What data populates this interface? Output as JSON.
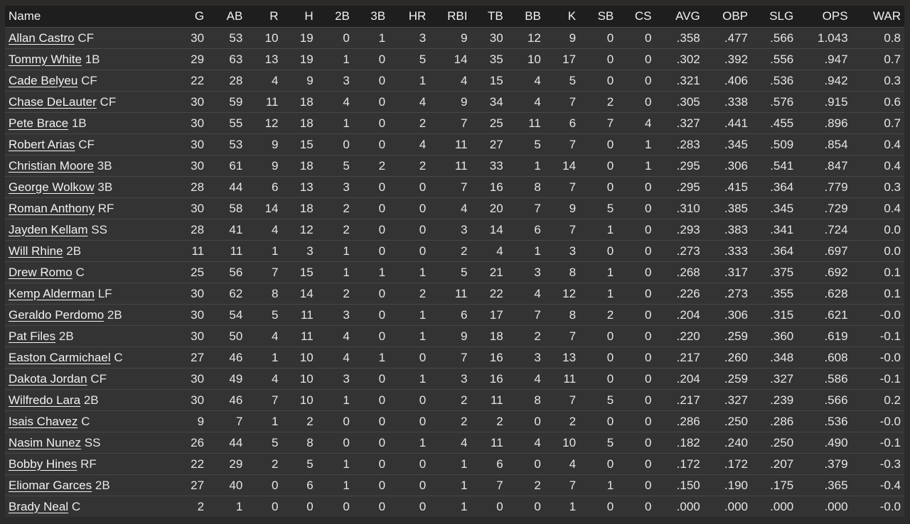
{
  "columns": [
    "Name",
    "G",
    "AB",
    "R",
    "H",
    "2B",
    "3B",
    "HR",
    "RBI",
    "TB",
    "BB",
    "K",
    "SB",
    "CS",
    "AVG",
    "OBP",
    "SLG",
    "OPS",
    "WAR"
  ],
  "rows": [
    {
      "name": "Allan Castro",
      "pos": "CF",
      "stats": [
        "30",
        "53",
        "10",
        "19",
        "0",
        "1",
        "3",
        "9",
        "30",
        "12",
        "9",
        "0",
        "0",
        ".358",
        ".477",
        ".566",
        "1.043",
        "0.8"
      ]
    },
    {
      "name": "Tommy White",
      "pos": "1B",
      "stats": [
        "29",
        "63",
        "13",
        "19",
        "1",
        "0",
        "5",
        "14",
        "35",
        "10",
        "17",
        "0",
        "0",
        ".302",
        ".392",
        ".556",
        ".947",
        "0.7"
      ]
    },
    {
      "name": "Cade Belyeu",
      "pos": "CF",
      "stats": [
        "22",
        "28",
        "4",
        "9",
        "3",
        "0",
        "1",
        "4",
        "15",
        "4",
        "5",
        "0",
        "0",
        ".321",
        ".406",
        ".536",
        ".942",
        "0.3"
      ]
    },
    {
      "name": "Chase DeLauter",
      "pos": "CF",
      "stats": [
        "30",
        "59",
        "11",
        "18",
        "4",
        "0",
        "4",
        "9",
        "34",
        "4",
        "7",
        "2",
        "0",
        ".305",
        ".338",
        ".576",
        ".915",
        "0.6"
      ]
    },
    {
      "name": "Pete Brace",
      "pos": "1B",
      "stats": [
        "30",
        "55",
        "12",
        "18",
        "1",
        "0",
        "2",
        "7",
        "25",
        "11",
        "6",
        "7",
        "4",
        ".327",
        ".441",
        ".455",
        ".896",
        "0.7"
      ]
    },
    {
      "name": "Robert Arias",
      "pos": "CF",
      "stats": [
        "30",
        "53",
        "9",
        "15",
        "0",
        "0",
        "4",
        "11",
        "27",
        "5",
        "7",
        "0",
        "1",
        ".283",
        ".345",
        ".509",
        ".854",
        "0.4"
      ]
    },
    {
      "name": "Christian Moore",
      "pos": "3B",
      "stats": [
        "30",
        "61",
        "9",
        "18",
        "5",
        "2",
        "2",
        "11",
        "33",
        "1",
        "14",
        "0",
        "1",
        ".295",
        ".306",
        ".541",
        ".847",
        "0.4"
      ]
    },
    {
      "name": "George Wolkow",
      "pos": "3B",
      "stats": [
        "28",
        "44",
        "6",
        "13",
        "3",
        "0",
        "0",
        "7",
        "16",
        "8",
        "7",
        "0",
        "0",
        ".295",
        ".415",
        ".364",
        ".779",
        "0.3"
      ]
    },
    {
      "name": "Roman Anthony",
      "pos": "RF",
      "stats": [
        "30",
        "58",
        "14",
        "18",
        "2",
        "0",
        "0",
        "4",
        "20",
        "7",
        "9",
        "5",
        "0",
        ".310",
        ".385",
        ".345",
        ".729",
        "0.4"
      ]
    },
    {
      "name": "Jayden Kellam",
      "pos": "SS",
      "stats": [
        "28",
        "41",
        "4",
        "12",
        "2",
        "0",
        "0",
        "3",
        "14",
        "6",
        "7",
        "1",
        "0",
        ".293",
        ".383",
        ".341",
        ".724",
        "0.0"
      ]
    },
    {
      "name": "Will Rhine",
      "pos": "2B",
      "stats": [
        "11",
        "11",
        "1",
        "3",
        "1",
        "0",
        "0",
        "2",
        "4",
        "1",
        "3",
        "0",
        "0",
        ".273",
        ".333",
        ".364",
        ".697",
        "0.0"
      ]
    },
    {
      "name": "Drew Romo",
      "pos": "C",
      "stats": [
        "25",
        "56",
        "7",
        "15",
        "1",
        "1",
        "1",
        "5",
        "21",
        "3",
        "8",
        "1",
        "0",
        ".268",
        ".317",
        ".375",
        ".692",
        "0.1"
      ]
    },
    {
      "name": "Kemp Alderman",
      "pos": "LF",
      "stats": [
        "30",
        "62",
        "8",
        "14",
        "2",
        "0",
        "2",
        "11",
        "22",
        "4",
        "12",
        "1",
        "0",
        ".226",
        ".273",
        ".355",
        ".628",
        "0.1"
      ]
    },
    {
      "name": "Geraldo Perdomo",
      "pos": "2B",
      "stats": [
        "30",
        "54",
        "5",
        "11",
        "3",
        "0",
        "1",
        "6",
        "17",
        "7",
        "8",
        "2",
        "0",
        ".204",
        ".306",
        ".315",
        ".621",
        "-0.0"
      ]
    },
    {
      "name": "Pat Files",
      "pos": "2B",
      "stats": [
        "30",
        "50",
        "4",
        "11",
        "4",
        "0",
        "1",
        "9",
        "18",
        "2",
        "7",
        "0",
        "0",
        ".220",
        ".259",
        ".360",
        ".619",
        "-0.1"
      ]
    },
    {
      "name": "Easton Carmichael",
      "pos": "C",
      "stats": [
        "27",
        "46",
        "1",
        "10",
        "4",
        "1",
        "0",
        "7",
        "16",
        "3",
        "13",
        "0",
        "0",
        ".217",
        ".260",
        ".348",
        ".608",
        "-0.0"
      ]
    },
    {
      "name": "Dakota Jordan",
      "pos": "CF",
      "stats": [
        "30",
        "49",
        "4",
        "10",
        "3",
        "0",
        "1",
        "3",
        "16",
        "4",
        "11",
        "0",
        "0",
        ".204",
        ".259",
        ".327",
        ".586",
        "-0.1"
      ]
    },
    {
      "name": "Wilfredo Lara",
      "pos": "2B",
      "stats": [
        "30",
        "46",
        "7",
        "10",
        "1",
        "0",
        "0",
        "2",
        "11",
        "8",
        "7",
        "5",
        "0",
        ".217",
        ".327",
        ".239",
        ".566",
        "0.2"
      ]
    },
    {
      "name": "Isais Chavez",
      "pos": "C",
      "stats": [
        "9",
        "7",
        "1",
        "2",
        "0",
        "0",
        "0",
        "2",
        "2",
        "0",
        "2",
        "0",
        "0",
        ".286",
        ".250",
        ".286",
        ".536",
        "-0.0"
      ]
    },
    {
      "name": "Nasim Nunez",
      "pos": "SS",
      "stats": [
        "26",
        "44",
        "5",
        "8",
        "0",
        "0",
        "1",
        "4",
        "11",
        "4",
        "10",
        "5",
        "0",
        ".182",
        ".240",
        ".250",
        ".490",
        "-0.1"
      ]
    },
    {
      "name": "Bobby Hines",
      "pos": "RF",
      "stats": [
        "22",
        "29",
        "2",
        "5",
        "1",
        "0",
        "0",
        "1",
        "6",
        "0",
        "4",
        "0",
        "0",
        ".172",
        ".172",
        ".207",
        ".379",
        "-0.3"
      ]
    },
    {
      "name": "Eliomar Garces",
      "pos": "2B",
      "stats": [
        "27",
        "40",
        "0",
        "6",
        "1",
        "0",
        "0",
        "1",
        "7",
        "2",
        "7",
        "1",
        "0",
        ".150",
        ".190",
        ".175",
        ".365",
        "-0.4"
      ]
    },
    {
      "name": "Brady Neal",
      "pos": "C",
      "stats": [
        "2",
        "1",
        "0",
        "0",
        "0",
        "0",
        "0",
        "1",
        "0",
        "0",
        "1",
        "0",
        "0",
        ".000",
        ".000",
        ".000",
        ".000",
        "-0.0"
      ]
    }
  ]
}
